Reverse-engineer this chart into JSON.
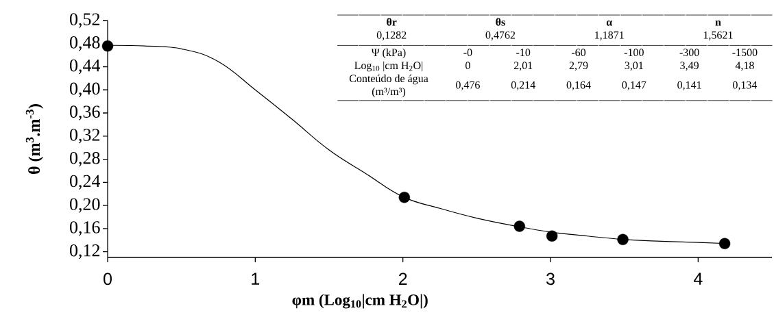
{
  "chart_data": {
    "type": "line",
    "xlabel": "φm (Log$_{10}$|cm H$_{2}$O|)",
    "ylabel": "θ (m$^{3}$.m$^{-3}$)",
    "xlim": [
      0,
      4.5
    ],
    "xticks": [
      0,
      1,
      2,
      3,
      4
    ],
    "ylim": [
      0.11,
      0.52
    ],
    "yticks": [
      {
        "value": 0.12,
        "label": "0,12"
      },
      {
        "value": 0.16,
        "label": "0,16"
      },
      {
        "value": 0.2,
        "label": "0,20"
      },
      {
        "value": 0.24,
        "label": "0,24"
      },
      {
        "value": 0.28,
        "label": "0,28"
      },
      {
        "value": 0.32,
        "label": "0,32"
      },
      {
        "value": 0.36,
        "label": "0,36"
      },
      {
        "value": 0.4,
        "label": "0,40"
      },
      {
        "value": 0.44,
        "label": "0,44"
      },
      {
        "value": 0.48,
        "label": "0,48"
      },
      {
        "value": 0.52,
        "label": "0,52"
      }
    ],
    "series": [
      {
        "type": "line",
        "color": "#000000",
        "marker": "none",
        "x": [
          0,
          0.25,
          0.5,
          0.75,
          1,
          1.25,
          1.5,
          1.75,
          2,
          2.25,
          2.5,
          2.75,
          3,
          3.25,
          3.5,
          3.75,
          4,
          4.2
        ],
        "values": [
          0.477,
          0.476,
          0.471,
          0.449,
          0.4,
          0.349,
          0.296,
          0.255,
          0.215,
          0.195,
          0.178,
          0.165,
          0.154,
          0.147,
          0.141,
          0.138,
          0.136,
          0.134
        ]
      },
      {
        "type": "scatter",
        "color": "#000000",
        "marker": "circle",
        "x": [
          0,
          2.01,
          2.79,
          3.01,
          3.49,
          4.18
        ],
        "values": [
          0.476,
          0.214,
          0.164,
          0.147,
          0.141,
          0.134
        ]
      }
    ],
    "annotations": [
      "θr",
      "θs",
      "α",
      "n",
      "0,1282",
      "0,4762",
      "1,1871",
      "1,5621",
      "Ψ (kPa)",
      "-0",
      "-10",
      "-60",
      "-100",
      "-300",
      "-1500",
      "Log$_{10}$ |cm H$_{2}$O|",
      "0",
      "2,01",
      "2,79",
      "3,01",
      "3,49",
      "4,18",
      "Conteúdo de água (m³/m³)",
      "0,476",
      "0,214",
      "0,164",
      "0,147",
      "0,141",
      "0,134"
    ]
  }
}
